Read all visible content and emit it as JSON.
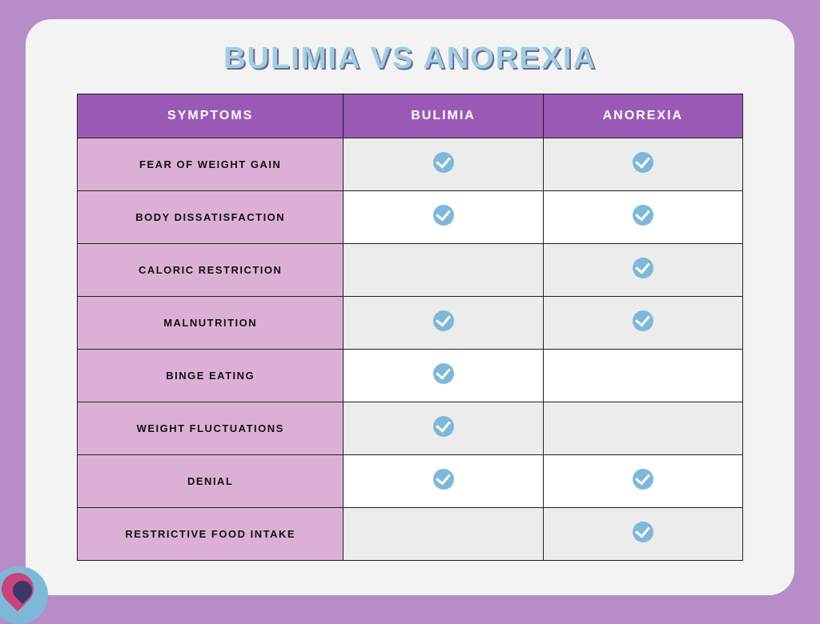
{
  "title": "BULIMIA VS ANOREXIA",
  "table": {
    "headers": {
      "symptoms": "SYMPTOMS",
      "col1": "BULIMIA",
      "col2": "ANOREXIA"
    },
    "rows": [
      {
        "label": "FEAR OF WEIGHT GAIN",
        "bulimia": true,
        "anorexia": true,
        "alt": "grey"
      },
      {
        "label": "BODY DISSATISFACTION",
        "bulimia": true,
        "anorexia": true,
        "alt": "white"
      },
      {
        "label": "CALORIC RESTRICTION",
        "bulimia": false,
        "anorexia": true,
        "alt": "grey"
      },
      {
        "label": "MALNUTRITION",
        "bulimia": true,
        "anorexia": true,
        "alt": "grey"
      },
      {
        "label": "BINGE EATING",
        "bulimia": true,
        "anorexia": false,
        "alt": "white"
      },
      {
        "label": "WEIGHT FLUCTUATIONS",
        "bulimia": true,
        "anorexia": false,
        "alt": "grey"
      },
      {
        "label": "DENIAL",
        "bulimia": true,
        "anorexia": true,
        "alt": "white"
      },
      {
        "label": "RESTRICTIVE FOOD INTAKE",
        "bulimia": false,
        "anorexia": true,
        "alt": "grey"
      }
    ]
  },
  "colors": {
    "page_bg": "#b68dc9",
    "card_bg": "#f3f3f3",
    "header_bg": "#9b59b6",
    "symptom_bg": "#dcb0d6",
    "alt_row_bg": "#ececec",
    "check_bg": "#7db8d8",
    "title_color": "#a0cde3",
    "title_shadow": "#6b6b8f",
    "border": "#222222"
  }
}
